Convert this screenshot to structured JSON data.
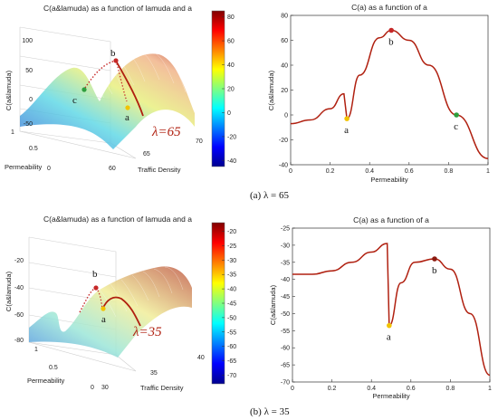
{
  "captions": [
    "(a) λ = 65",
    "(b) λ = 35"
  ],
  "chart_data": [
    {
      "type": "surface",
      "title": "C(a&lamuda) as a function of lamuda and a",
      "xlabel": "Permeability",
      "ylabel": "Traffic Density",
      "zlabel": "C(a&lamuda)",
      "x_ticks": [
        "0",
        "0.5",
        "1"
      ],
      "y_ticks": [
        "60",
        "65",
        "70"
      ],
      "z_ticks": [
        "-50",
        "0",
        "50",
        "100"
      ],
      "zlim": [
        -50,
        100
      ],
      "ylim": [
        60,
        70
      ],
      "colorbar": {
        "ticks": [
          -40,
          -20,
          0,
          20,
          40,
          60,
          80
        ],
        "range": [
          -45,
          85
        ]
      },
      "points": [
        {
          "label": "a"
        },
        {
          "label": "b"
        },
        {
          "label": "c"
        }
      ],
      "annotation": "λ=65"
    },
    {
      "type": "line",
      "title": "C(a) as a function of a",
      "xlabel": "Permeability",
      "ylabel": "C(a&lamuda)",
      "xlim": [
        0,
        1
      ],
      "ylim": [
        -40,
        80
      ],
      "x_ticks": [
        0,
        0.2,
        0.4,
        0.6,
        0.8,
        1
      ],
      "y_ticks": [
        -40,
        -20,
        0,
        20,
        40,
        60,
        80
      ],
      "x": [
        0,
        0.1,
        0.2,
        0.27,
        0.285,
        0.35,
        0.45,
        0.51,
        0.6,
        0.7,
        0.84,
        1.0
      ],
      "y": [
        -7,
        -4,
        5,
        17,
        -3,
        32,
        62,
        68,
        60,
        40,
        0,
        -35
      ],
      "points": [
        {
          "label": "a",
          "x": 0.285,
          "y": -3,
          "color": "#f2c300"
        },
        {
          "label": "b",
          "x": 0.51,
          "y": 68,
          "color": "#c62828"
        },
        {
          "label": "c",
          "x": 0.84,
          "y": 0,
          "color": "#2e9e3e"
        }
      ]
    },
    {
      "type": "surface",
      "title": "C(a&lamuda) as a function of lamuda and a",
      "xlabel": "Permeability",
      "ylabel": "Traffic Density",
      "zlabel": "C(a&lamuda)",
      "x_ticks": [
        "0",
        "0.5",
        "1"
      ],
      "y_ticks": [
        "30",
        "35",
        "40"
      ],
      "z_ticks": [
        "-80",
        "-60",
        "-40",
        "-20"
      ],
      "zlim": [
        -80,
        -20
      ],
      "ylim": [
        30,
        40
      ],
      "colorbar": {
        "ticks": [
          -70,
          -65,
          -60,
          -55,
          -50,
          -45,
          -40,
          -35,
          -30,
          -25,
          -20
        ],
        "range": [
          -73,
          -17
        ]
      },
      "points": [
        {
          "label": "a"
        },
        {
          "label": "b"
        }
      ],
      "annotation": "λ=35"
    },
    {
      "type": "line",
      "title": "C(a) as a function of a",
      "xlabel": "Permeability",
      "ylabel": "C(a&lamuda)",
      "xlim": [
        0,
        1
      ],
      "ylim": [
        -70,
        -25
      ],
      "x_ticks": [
        0,
        0.2,
        0.4,
        0.6,
        0.8,
        1
      ],
      "y_ticks": [
        -70,
        -65,
        -60,
        -55,
        -50,
        -45,
        -40,
        -35,
        -30,
        -25
      ],
      "x": [
        0,
        0.1,
        0.2,
        0.3,
        0.4,
        0.48,
        0.49,
        0.55,
        0.62,
        0.72,
        0.8,
        0.9,
        1.0
      ],
      "y": [
        -38.5,
        -38.5,
        -37.5,
        -35,
        -32,
        -29.5,
        -53.5,
        -41,
        -35,
        -34,
        -37,
        -50,
        -68
      ],
      "points": [
        {
          "label": "a",
          "x": 0.49,
          "y": -53.5,
          "color": "#f2c300"
        },
        {
          "label": "b",
          "x": 0.72,
          "y": -34,
          "color": "#8b1a10"
        }
      ]
    }
  ]
}
